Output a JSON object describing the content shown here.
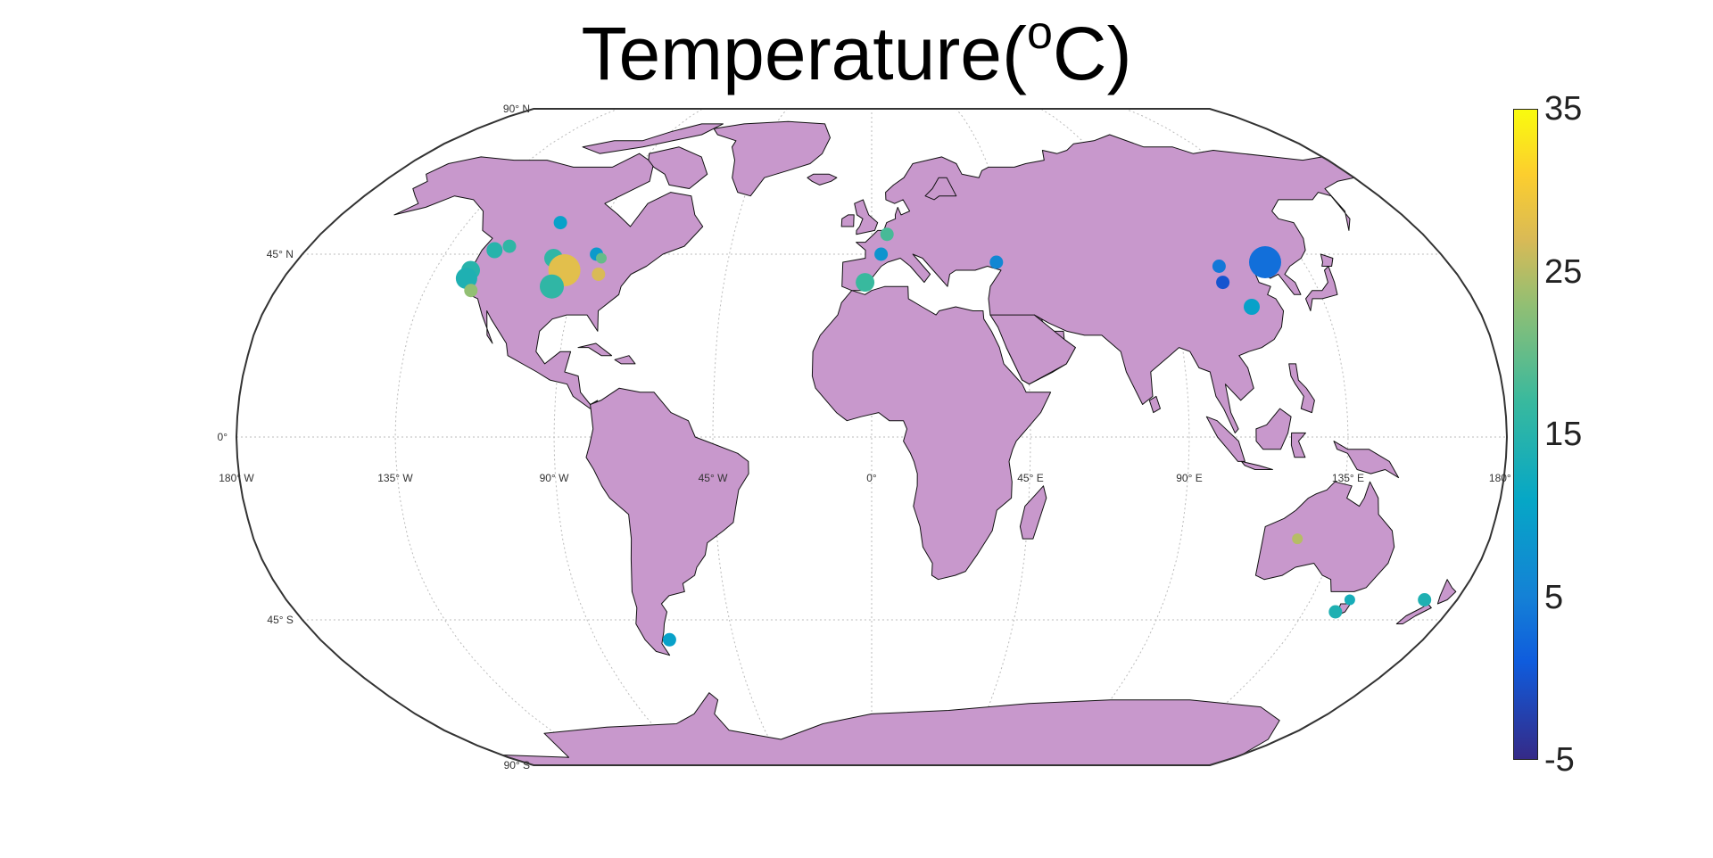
{
  "title": {
    "text": "Temperature(",
    "sup": "o",
    "tail": "C)"
  },
  "map": {
    "projection": "robinson",
    "land_color": "#c898cc",
    "coast_color": "#111111",
    "graticule_color": "#bbbbbb",
    "lat_labels": [
      {
        "lat": 90,
        "text": "90° N"
      },
      {
        "lat": 45,
        "text": "45° N"
      },
      {
        "lat": 0,
        "text": "0°"
      },
      {
        "lat": -45,
        "text": "45° S"
      },
      {
        "lat": -90,
        "text": "90° S"
      }
    ],
    "lon_labels": [
      {
        "lon": -180,
        "text": "180° W"
      },
      {
        "lon": -135,
        "text": "135° W"
      },
      {
        "lon": -90,
        "text": "90° W"
      },
      {
        "lon": -45,
        "text": "45° W"
      },
      {
        "lon": 0,
        "text": "0°"
      },
      {
        "lon": 45,
        "text": "45° E"
      },
      {
        "lon": 90,
        "text": "90° E"
      },
      {
        "lon": 135,
        "text": "135° E"
      },
      {
        "lon": 180,
        "text": "180° E"
      }
    ]
  },
  "colorbar": {
    "min": -5,
    "max": 35,
    "ticks": [
      {
        "value": 35,
        "label": "35"
      },
      {
        "value": 25,
        "label": "25"
      },
      {
        "value": 15,
        "label": "15"
      },
      {
        "value": 5,
        "label": "5"
      },
      {
        "value": -5,
        "label": "-5"
      }
    ]
  },
  "chart_data": {
    "type": "scatter",
    "series": [
      {
        "lon": -120,
        "lat": 46,
        "value": 15,
        "size": 4
      },
      {
        "lon": -104,
        "lat": 53,
        "value": 10,
        "size": 3
      },
      {
        "lon": -116,
        "lat": 47,
        "value": 16,
        "size": 3
      },
      {
        "lon": -124,
        "lat": 41,
        "value": 15,
        "size": 5
      },
      {
        "lon": -124,
        "lat": 39,
        "value": 14,
        "size": 6
      },
      {
        "lon": -121,
        "lat": 36,
        "value": 23,
        "size": 3
      },
      {
        "lon": -100,
        "lat": 44,
        "value": 16,
        "size": 5
      },
      {
        "lon": -95,
        "lat": 41,
        "value": 28,
        "size": 10
      },
      {
        "lon": -97,
        "lat": 37,
        "value": 16,
        "size": 7
      },
      {
        "lon": -87,
        "lat": 45,
        "value": 9,
        "size": 3
      },
      {
        "lon": -85,
        "lat": 44,
        "value": 20,
        "size": 2
      },
      {
        "lon": -84,
        "lat": 40,
        "value": 27,
        "size": 3
      },
      {
        "lon": -66,
        "lat": -50,
        "value": 10,
        "size": 3
      },
      {
        "lon": 5,
        "lat": 50,
        "value": 18,
        "size": 3
      },
      {
        "lon": 3,
        "lat": 45,
        "value": 8,
        "size": 3
      },
      {
        "lon": -2,
        "lat": 38,
        "value": 17,
        "size": 5
      },
      {
        "lon": 39,
        "lat": 43,
        "value": 6,
        "size": 3
      },
      {
        "lon": 108,
        "lat": 42,
        "value": 4,
        "size": 3
      },
      {
        "lon": 107,
        "lat": 38,
        "value": 0,
        "size": 3
      },
      {
        "lon": 113,
        "lat": 32,
        "value": 10,
        "size": 4
      },
      {
        "lon": 123,
        "lat": 43,
        "value": 3,
        "size": 10
      },
      {
        "lon": 124,
        "lat": -25,
        "value": 25,
        "size": 2
      },
      {
        "lon": 147,
        "lat": -40,
        "value": 13,
        "size": 2
      },
      {
        "lon": 145,
        "lat": -43,
        "value": 14,
        "size": 3
      },
      {
        "lon": 170,
        "lat": -40,
        "value": 14,
        "size": 3
      }
    ]
  }
}
